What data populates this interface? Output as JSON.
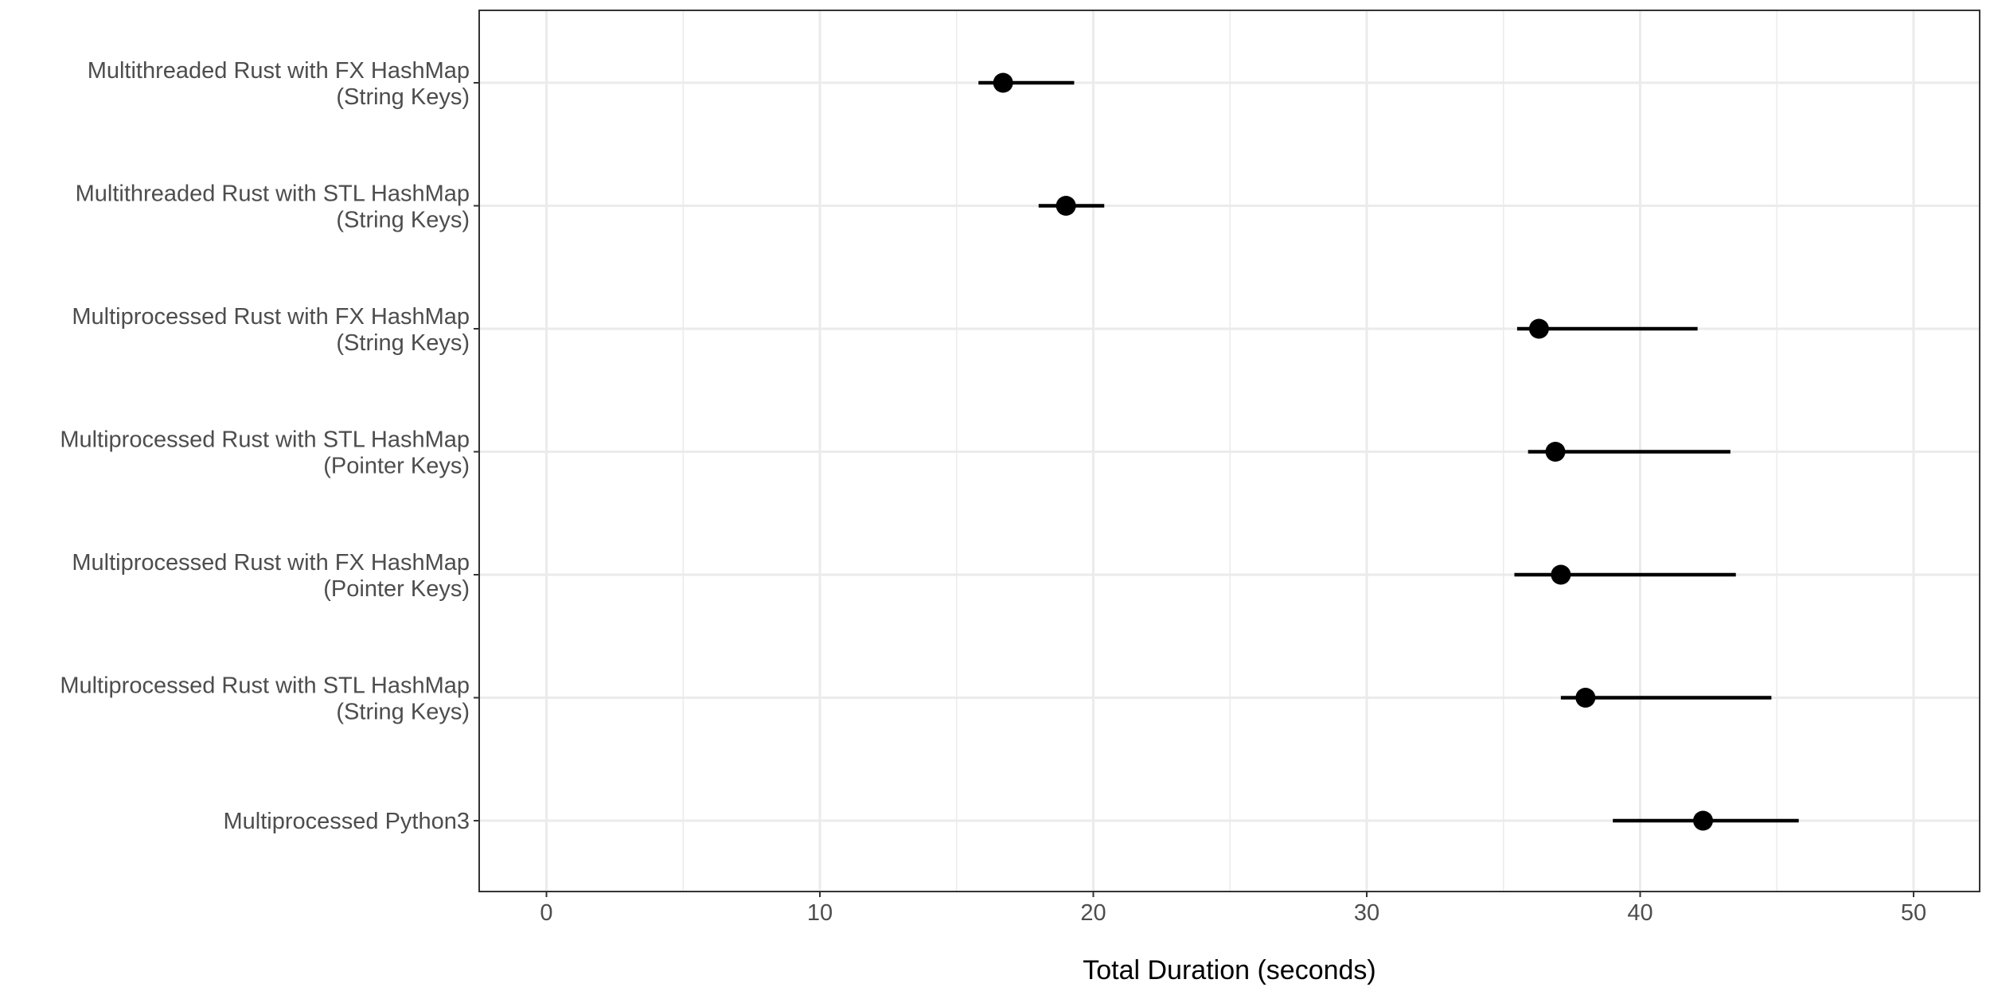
{
  "chart_data": {
    "type": "pointrange",
    "xlabel": "Total Duration (seconds)",
    "ylabel": "",
    "xlim": [
      -2.5,
      52.5
    ],
    "x_ticks": [
      0,
      10,
      20,
      30,
      40,
      50
    ],
    "grid": true,
    "legend": "none",
    "colors": {
      "point": "#000000",
      "grid": "#ebebeb",
      "panel_border": "#333333",
      "label": "#4d4d4d"
    },
    "categories": [
      [
        "Multithreaded Rust with FX HashMap",
        "(String Keys)"
      ],
      [
        "Multithreaded Rust with STL HashMap",
        "(String Keys)"
      ],
      [
        "Multiprocessed Rust with FX HashMap",
        "(String Keys)"
      ],
      [
        "Multiprocessed Rust with STL HashMap",
        "(Pointer Keys)"
      ],
      [
        "Multiprocessed Rust with FX HashMap",
        "(Pointer Keys)"
      ],
      [
        "Multiprocessed Rust with STL HashMap",
        "(String Keys)"
      ],
      [
        "Multiprocessed Python3"
      ]
    ],
    "points": [
      {
        "value": 16.7,
        "low": 15.8,
        "high": 19.3
      },
      {
        "value": 19.0,
        "low": 18.0,
        "high": 20.4
      },
      {
        "value": 36.3,
        "low": 35.5,
        "high": 42.1
      },
      {
        "value": 36.9,
        "low": 35.9,
        "high": 43.3
      },
      {
        "value": 37.1,
        "low": 35.4,
        "high": 43.5
      },
      {
        "value": 38.0,
        "low": 37.1,
        "high": 44.8
      },
      {
        "value": 42.3,
        "low": 39.0,
        "high": 45.8
      }
    ]
  }
}
